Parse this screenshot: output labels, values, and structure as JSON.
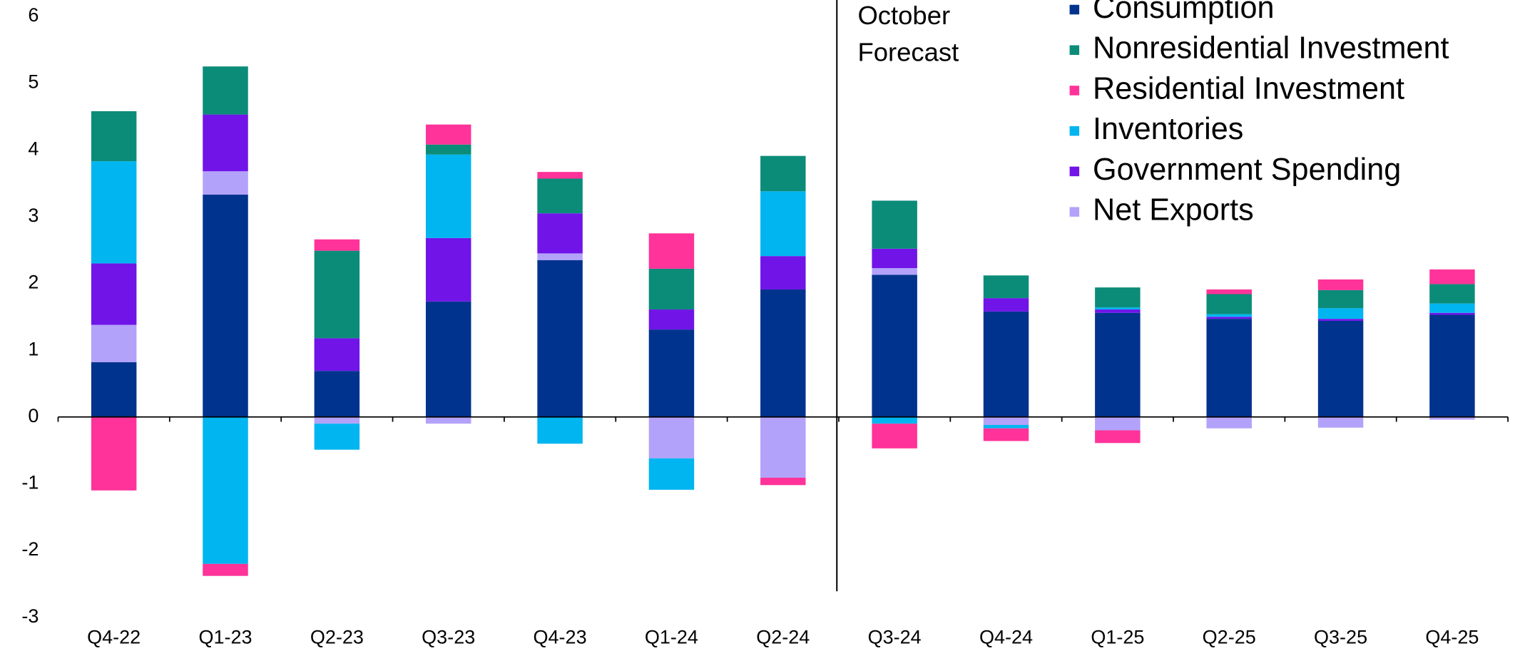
{
  "chart_data": {
    "type": "stacked_bar",
    "annotation": [
      "October",
      "Forecast"
    ],
    "categories": [
      "Q4-22",
      "Q1-23",
      "Q2-23",
      "Q3-23",
      "Q4-23",
      "Q1-24",
      "Q2-24",
      "Q3-24",
      "Q4-24",
      "Q1-25",
      "Q2-25",
      "Q3-25",
      "Q4-25"
    ],
    "series": [
      {
        "name": "Consumption",
        "color": "#00338d",
        "values": [
          0.82,
          3.33,
          0.69,
          1.73,
          2.35,
          1.31,
          1.91,
          2.13,
          1.58,
          1.56,
          1.47,
          1.44,
          1.53
        ]
      },
      {
        "name": "Nonresidential Investment",
        "color": "#0b8c79",
        "values": [
          0.75,
          0.72,
          1.31,
          0.15,
          0.52,
          0.61,
          0.53,
          0.72,
          0.34,
          0.3,
          0.3,
          0.27,
          0.29
        ]
      },
      {
        "name": "Residential Investment",
        "color": "#ff3399",
        "values": [
          -1.1,
          -0.18,
          0.17,
          0.3,
          0.1,
          0.53,
          -0.11,
          -0.37,
          -0.19,
          -0.19,
          0.07,
          0.16,
          0.22
        ]
      },
      {
        "name": "Inventories",
        "color": "#00b5f0",
        "values": [
          1.53,
          -2.2,
          -0.39,
          1.25,
          -0.4,
          -0.47,
          0.97,
          -0.1,
          -0.05,
          0.03,
          0.04,
          0.16,
          0.14
        ]
      },
      {
        "name": "Government Spending",
        "color": "#7014e8",
        "values": [
          0.92,
          0.85,
          0.49,
          0.95,
          0.6,
          0.3,
          0.5,
          0.29,
          0.2,
          0.05,
          0.03,
          0.03,
          0.03
        ]
      },
      {
        "name": "Net Exports",
        "color": "#b3a2f9",
        "values": [
          0.56,
          0.35,
          -0.1,
          -0.1,
          0.1,
          -0.62,
          -0.91,
          0.1,
          -0.12,
          -0.2,
          -0.17,
          -0.16,
          -0.04
        ]
      }
    ],
    "ylim": [
      -3,
      6
    ],
    "yticks": [
      -3,
      -2,
      -1,
      0,
      1,
      2,
      3,
      4,
      5,
      6
    ],
    "legend": "upper right"
  }
}
